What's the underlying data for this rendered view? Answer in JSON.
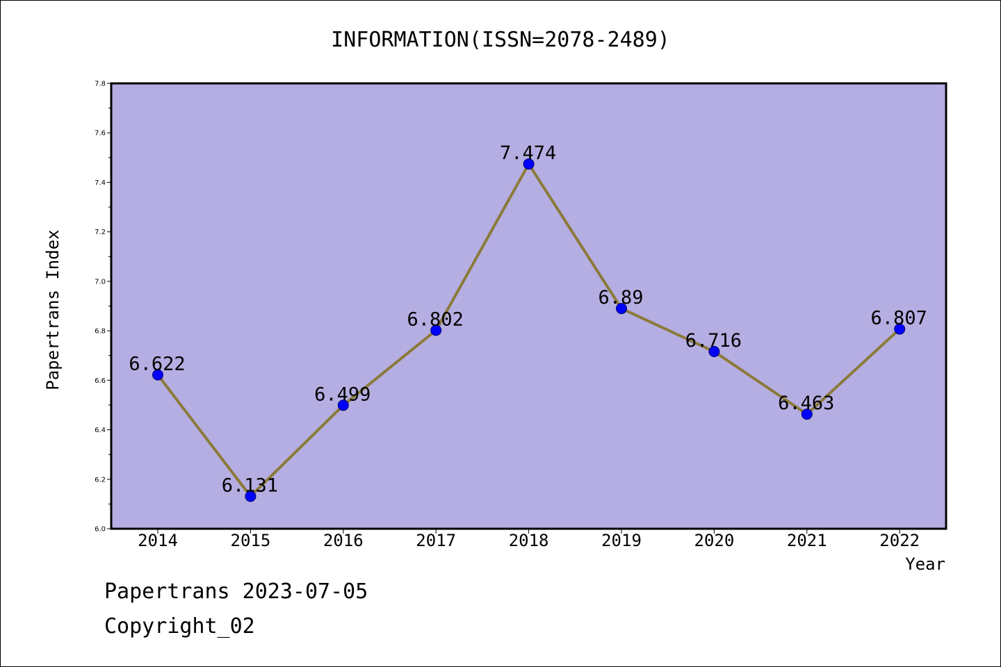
{
  "chart_data": {
    "type": "line",
    "title": "INFORMATION(ISSN=2078-2489)",
    "xlabel": "Year",
    "ylabel": "Papertrans Index",
    "categories": [
      "2014",
      "2015",
      "2016",
      "2017",
      "2018",
      "2019",
      "2020",
      "2021",
      "2022"
    ],
    "series": [
      {
        "values": [
          6.622,
          6.131,
          6.499,
          6.802,
          7.474,
          6.89,
          6.716,
          6.463,
          6.807
        ]
      }
    ],
    "data_labels": [
      "6.622",
      "6.131",
      "6.499",
      "6.802",
      "7.474",
      "6.89",
      "6.716",
      "6.463",
      "6.807"
    ],
    "ylim": [
      6.0,
      7.8
    ],
    "yticks": [
      6.0,
      6.2,
      6.4,
      6.6,
      6.8,
      7.0,
      7.2,
      7.4,
      7.6,
      7.8
    ],
    "ytick_labels": [
      "6.0",
      "6.2",
      "6.4",
      "6.6",
      "6.8",
      "7.0",
      "7.2",
      "7.4",
      "7.6",
      "7.8"
    ],
    "grid": false,
    "legend": "none",
    "colors": {
      "plot_background": "#b5aee2",
      "line": "#8b7a3a",
      "marker": "#0000ff"
    }
  },
  "footer": {
    "line1": "Papertrans 2023-07-05",
    "line2": "Copyright_02"
  }
}
